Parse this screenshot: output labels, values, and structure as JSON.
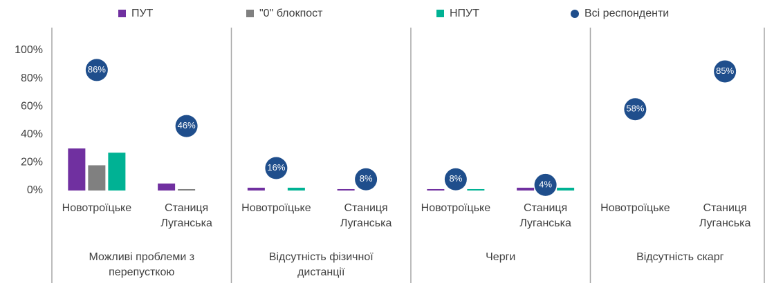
{
  "chart_data": {
    "type": "bar",
    "groups": [
      "Можливі проблеми з перепусткою",
      "Відсутність фізичної дистанції",
      "Черги",
      "Відсутність скарг"
    ],
    "categories": [
      "Новотроїцьке",
      "Станиця Луганська",
      "Новотроїцьке",
      "Станиця Луганська",
      "Новотроїцьке",
      "Станиця Луганська",
      "Новотроїцьке",
      "Станиця Луганська"
    ],
    "series": [
      {
        "name": "ПУТ",
        "color": "#7030a0",
        "values": [
          30,
          5,
          2,
          1,
          1,
          2,
          0,
          0
        ]
      },
      {
        "name": "\"0\" блокпост",
        "color": "#808080",
        "values": [
          18,
          1,
          0,
          0,
          0,
          0,
          0,
          0
        ]
      },
      {
        "name": "НПУТ",
        "color": "#00b294",
        "values": [
          27,
          0,
          2,
          0,
          1,
          2,
          0,
          0
        ]
      },
      {
        "name": "Всі респонденти",
        "color": "#1f4e8c",
        "marker": "circle",
        "values": [
          86,
          46,
          16,
          8,
          8,
          4,
          58,
          85
        ],
        "value_labels": [
          "86%",
          "46%",
          "16%",
          "8%",
          "8%",
          "4%",
          "58%",
          "85%"
        ]
      }
    ],
    "ylim": [
      0,
      100
    ],
    "yticks": [
      {
        "value": 0,
        "label": "0%"
      },
      {
        "value": 20,
        "label": "20%"
      },
      {
        "value": 40,
        "label": "40%"
      },
      {
        "value": 60,
        "label": "60%"
      },
      {
        "value": 80,
        "label": "80%"
      },
      {
        "value": 100,
        "label": "100%"
      }
    ]
  }
}
